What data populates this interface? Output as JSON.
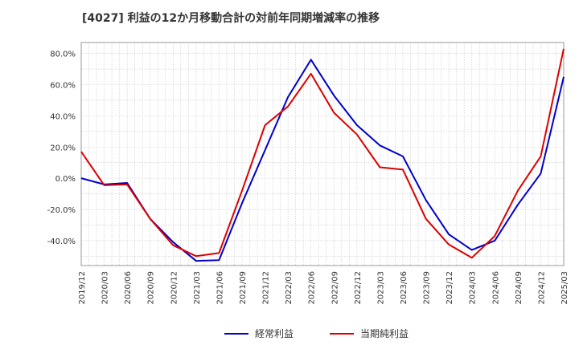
{
  "chart_data": {
    "type": "line",
    "title": "[4027]  利益の12か月移動合計の対前年同期増減率の推移",
    "xlabel": "",
    "ylabel": "",
    "ylim": [
      -56,
      87
    ],
    "yticks": [
      -40,
      -20,
      0,
      20,
      40,
      60,
      80
    ],
    "ytick_labels": [
      "-40.0%",
      "-20.0%",
      "0.0%",
      "20.0%",
      "40.0%",
      "60.0%",
      "80.0%"
    ],
    "categories": [
      "2019/12",
      "2020/03",
      "2020/06",
      "2020/09",
      "2020/12",
      "2021/03",
      "2021/06",
      "2021/09",
      "2021/12",
      "2022/03",
      "2022/06",
      "2022/09",
      "2022/12",
      "2023/03",
      "2023/06",
      "2023/09",
      "2023/12",
      "2024/03",
      "2024/06",
      "2024/09",
      "2024/12",
      "2025/03"
    ],
    "grid": true,
    "legend_position": "bottom",
    "series": [
      {
        "name": "経常利益",
        "color": "#0000cc",
        "values": [
          0.0,
          -4.0,
          -3.0,
          -26.0,
          -41.0,
          -53.0,
          -52.5,
          -16.0,
          18.0,
          52.0,
          76.0,
          53.0,
          34.0,
          21.0,
          14.0,
          -14.0,
          -36.0,
          -46.0,
          -40.0,
          -17.0,
          3.0,
          65.0
        ]
      },
      {
        "name": "当期純利益",
        "color": "#dd0000",
        "values": [
          17.0,
          -4.5,
          -4.0,
          -26.0,
          -43.0,
          -50.0,
          -48.0,
          -8.0,
          34.0,
          46.0,
          67.0,
          42.0,
          28.0,
          7.0,
          5.5,
          -26.0,
          -42.5,
          -51.0,
          -37.0,
          -8.0,
          14.0,
          83.0
        ]
      }
    ]
  }
}
